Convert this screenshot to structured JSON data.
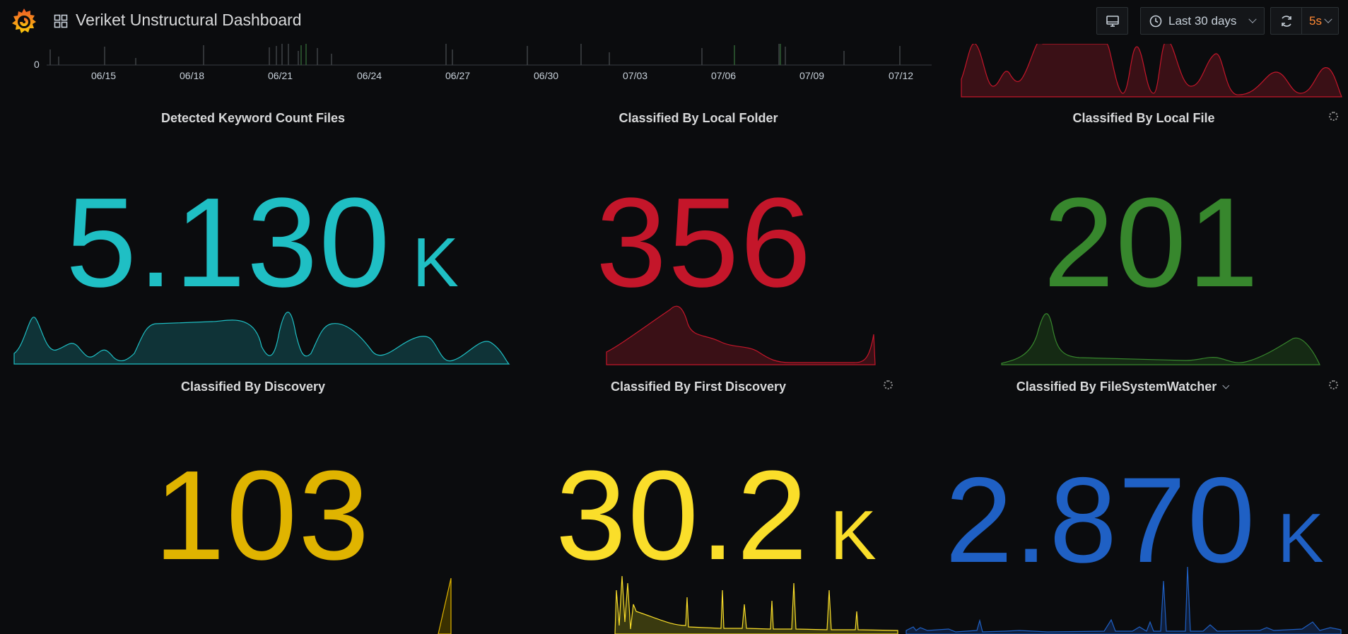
{
  "topbar": {
    "title": "Veriket Unstructural Dashboard",
    "time_range": "Last 30 days",
    "refresh_interval": "5s",
    "icons": [
      "grafana-logo-icon",
      "apps-grid-icon",
      "tv-mode-icon",
      "clock-icon",
      "chevron-down-icon",
      "refresh-icon"
    ]
  },
  "timeline": {
    "y_tick": "0",
    "x_ticks": [
      "06/15",
      "06/18",
      "06/21",
      "06/24",
      "06/27",
      "06/30",
      "07/03",
      "07/06",
      "07/09",
      "07/12"
    ]
  },
  "panels": [
    {
      "title": "Detected Keyword Count Files",
      "value": "5.130",
      "unit": "K",
      "color": "#1fbfc4"
    },
    {
      "title": "Classified By Local Folder",
      "value": "356",
      "unit": "",
      "color": "#c4162a"
    },
    {
      "title": "Classified By Local File",
      "value": "201",
      "unit": "",
      "color": "#37872d"
    },
    {
      "title": "Classified By Discovery",
      "value": "103",
      "unit": "",
      "color": "#e0b400"
    },
    {
      "title": "Classified By First Discovery",
      "value": "30.2",
      "unit": "K",
      "color": "#fade2a"
    },
    {
      "title": "Classified By FileSystemWatcher",
      "value": "2.870",
      "unit": "K",
      "color": "#1f60c4"
    }
  ]
}
